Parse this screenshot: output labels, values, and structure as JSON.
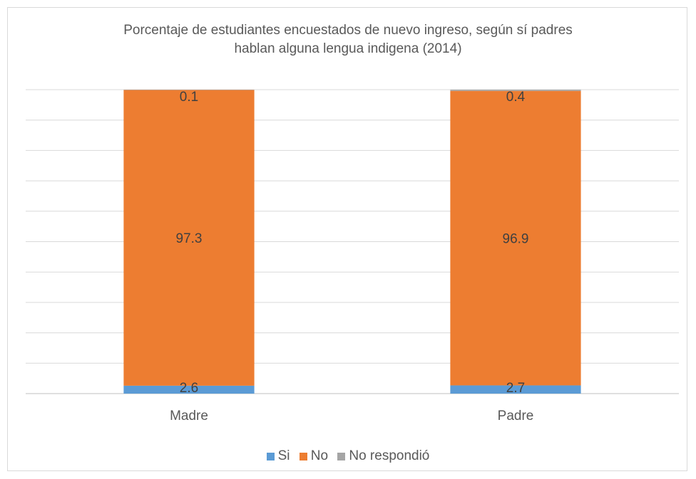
{
  "chart_data": {
    "type": "bar",
    "stacked": true,
    "title": "Porcentaje de estudiantes encuestados de nuevo ingreso, según sí  padres hablan alguna lengua indigena (2014)",
    "title_lines": [
      "Porcentaje de estudiantes encuestados de nuevo ingreso, según sí  padres",
      "hablan alguna lengua indigena (2014)"
    ],
    "categories": [
      "Madre",
      "Padre"
    ],
    "series": [
      {
        "name": "Si",
        "values": [
          2.6,
          2.7
        ],
        "color": "#5B9BD5"
      },
      {
        "name": "No",
        "values": [
          97.3,
          96.9
        ],
        "color": "#ED7D31"
      },
      {
        "name": "No respondió",
        "values": [
          0.1,
          0.4
        ],
        "color": "#A5A5A5"
      }
    ],
    "ylim": [
      0,
      100
    ],
    "grid": true,
    "legend_position": "bottom"
  }
}
